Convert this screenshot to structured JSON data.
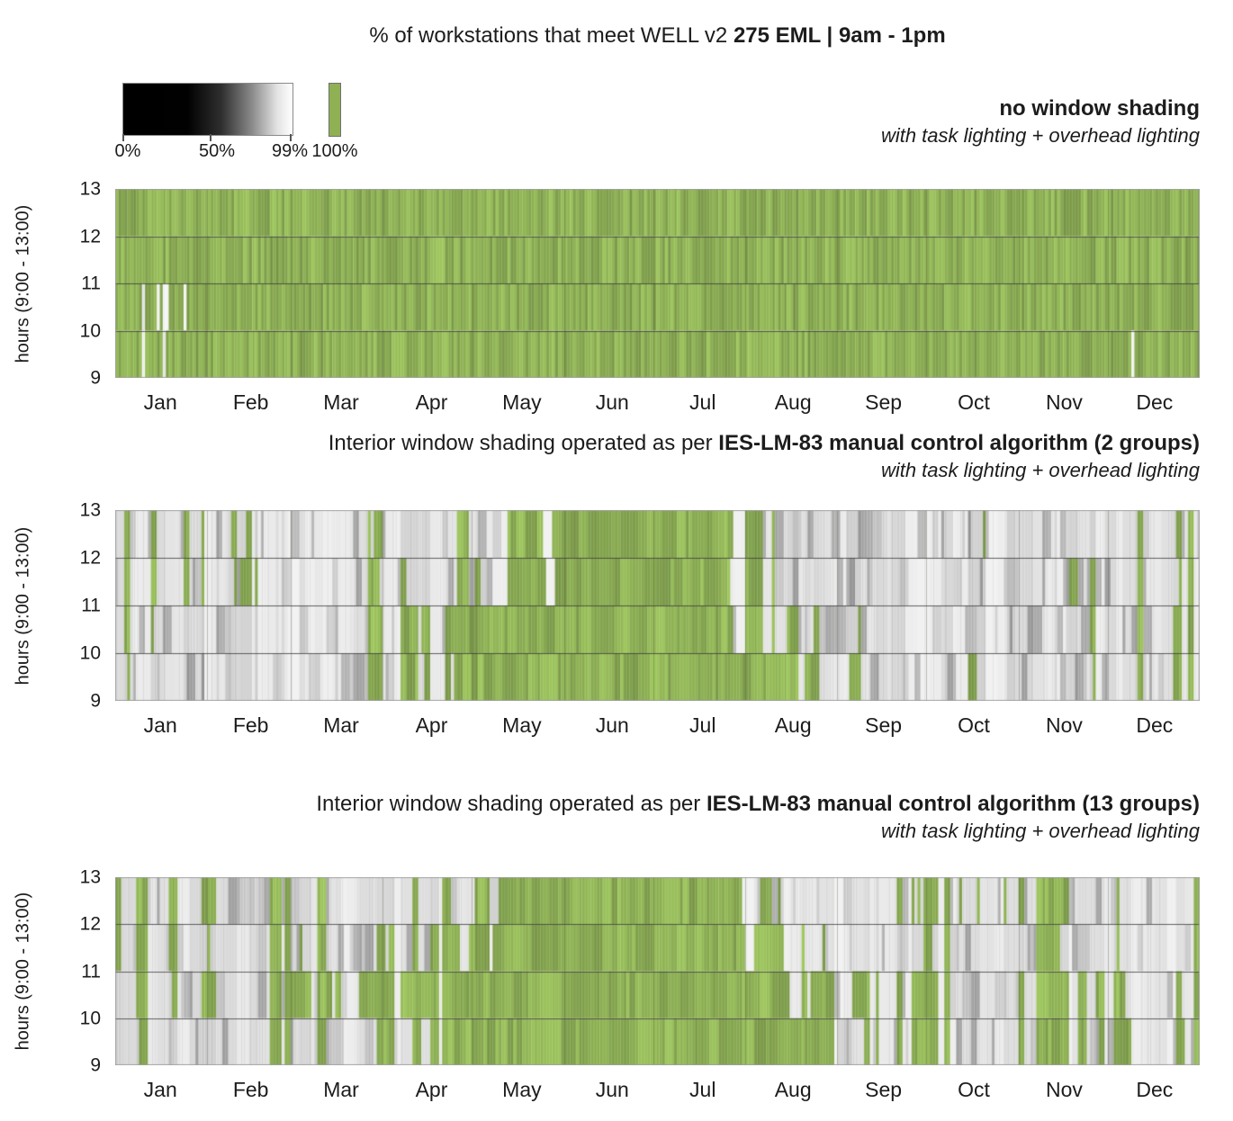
{
  "page_title": {
    "prefix": "% of workstations that meet WELL v2 ",
    "bold": "275 EML | 9am - 1pm"
  },
  "legend": {
    "gradient_labels": [
      "0%",
      "50%",
      "99%"
    ],
    "solid_label": "100%",
    "gradient_description": "0% maps to black, 99% maps to white",
    "solid_color": "#8FB153"
  },
  "axis": {
    "y_label": "hours (9:00 - 13:00)",
    "y_ticks": [
      "13",
      "12",
      "11",
      "10",
      "9"
    ],
    "months": [
      "Jan",
      "Feb",
      "Mar",
      "Apr",
      "May",
      "Jun",
      "Jul",
      "Aug",
      "Sep",
      "Oct",
      "Nov",
      "Dec"
    ]
  },
  "colors": {
    "green": "#8BAE52",
    "grid_line": "#4a4a4a",
    "text": "#1c1c1c"
  },
  "chart_data": [
    {
      "type": "heatmap",
      "id": "no-window-shading",
      "header_bold": "no window shading",
      "header_italic": "with task lighting + overhead lighting",
      "x_unit": "day of year (Jan-Dec)",
      "y_unit": "hour of day (9:00-13:00)",
      "value_meaning": "percent of workstations meeting 275 EML; green = 100%, grayscale = 0-99%",
      "hour_rows": [
        "12-13",
        "11-12",
        "10-11",
        "9-10"
      ],
      "green_fraction_by_month": {
        "12-13": [
          1,
          1,
          1,
          1,
          1,
          1,
          1,
          1,
          1,
          1,
          1,
          1
        ],
        "11-12": [
          1,
          1,
          1,
          1,
          1,
          1,
          1,
          1,
          1,
          1,
          1,
          1
        ],
        "10-11": [
          0.8,
          1,
          1,
          1,
          1,
          1,
          1,
          1,
          1,
          1,
          1,
          1
        ],
        "9-10": [
          0.87,
          0.97,
          1,
          1,
          1,
          1,
          1,
          1,
          1,
          0.97,
          0.97,
          0.9
        ]
      },
      "non_green_day_values": "95-99% (near-white stripes)"
    },
    {
      "type": "heatmap",
      "id": "ies-lm-83-manual-control-2-groups",
      "title_prefix": "Interior window shading operated as per ",
      "title_bold": "IES-LM-83 manual control algorithm (2 groups)",
      "subtitle_italic": "with task lighting + overhead lighting",
      "x_unit": "day of year (Jan-Dec)",
      "y_unit": "hour of day (9:00-13:00)",
      "value_meaning": "percent of workstations meeting 275 EML; green = 100%, grayscale = 0-99%",
      "hour_rows": [
        "12-13",
        "11-12",
        "10-11",
        "9-10"
      ],
      "green_fraction_by_month": {
        "12-13": [
          0.3,
          0.22,
          0.3,
          0.18,
          0.7,
          1,
          1,
          0.1,
          0.1,
          0.15,
          0.18,
          0.25
        ],
        "11-12": [
          0.28,
          0.22,
          0.32,
          0.25,
          0.75,
          1,
          1,
          0.18,
          0.1,
          0.12,
          0.22,
          0.28
        ],
        "10-11": [
          0.18,
          0.22,
          0.35,
          0.42,
          1.0,
          1,
          1,
          0.32,
          0.14,
          0.12,
          0.18,
          0.3
        ],
        "9-10": [
          0.08,
          0.12,
          0.28,
          0.38,
          1.0,
          1,
          1,
          0.62,
          0.2,
          0.18,
          0.12,
          0.3
        ]
      },
      "non_green_day_values": "55-99% (light to mid grays)"
    },
    {
      "type": "heatmap",
      "id": "ies-lm-83-manual-control-13-groups",
      "title_prefix": "Interior window shading operated as per ",
      "title_bold": "IES-LM-83 manual control algorithm (13 groups)",
      "subtitle_italic": "with task lighting + overhead lighting",
      "x_unit": "day of year (Jan-Dec)",
      "y_unit": "hour of day (9:00-13:00)",
      "value_meaning": "percent of workstations meeting 275 EML; green = 100%, grayscale = 0-99%",
      "hour_rows": [
        "12-13",
        "11-12",
        "10-11",
        "9-10"
      ],
      "green_fraction_by_month": {
        "12-13": [
          0.3,
          0.25,
          0.32,
          0.2,
          0.8,
          1,
          1,
          0.12,
          0.3,
          0.45,
          0.35,
          0.3
        ],
        "11-12": [
          0.28,
          0.22,
          0.38,
          0.3,
          1.0,
          1,
          1,
          0.6,
          0.25,
          0.25,
          0.3,
          0.35
        ],
        "10-11": [
          0.2,
          0.35,
          0.52,
          0.58,
          1.0,
          1,
          1,
          0.72,
          0.55,
          0.3,
          0.45,
          0.5
        ],
        "9-10": [
          0.12,
          0.2,
          0.35,
          0.45,
          1.0,
          1,
          1,
          0.85,
          0.45,
          0.35,
          0.4,
          0.5
        ]
      },
      "non_green_day_values": "55-99% (light to mid grays)"
    }
  ]
}
